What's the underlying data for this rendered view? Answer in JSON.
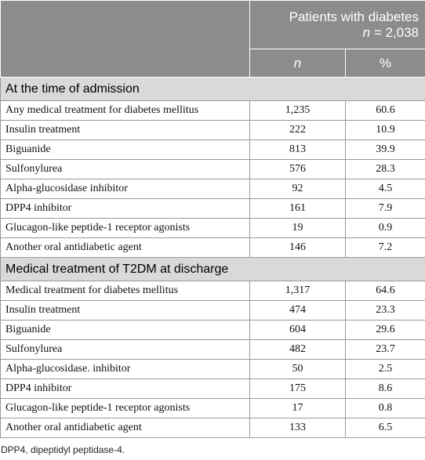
{
  "table": {
    "header": {
      "group": "Patients with diabetes",
      "group_sub": {
        "var": "n",
        "rest": "= 2,038"
      },
      "columns": [
        "n",
        "%"
      ]
    },
    "sections": [
      {
        "title": "At the time of admission",
        "rows": [
          [
            "Any medical treatment for diabetes mellitus",
            "1,235",
            "60.6"
          ],
          [
            "Insulin treatment",
            "222",
            "10.9"
          ],
          [
            "Biguanide",
            "813",
            "39.9"
          ],
          [
            "Sulfonylurea",
            "576",
            "28.3"
          ],
          [
            "Alpha-glucosidase inhibitor",
            "92",
            "4.5"
          ],
          [
            "DPP4 inhibitor",
            "161",
            "7.9"
          ],
          [
            "Glucagon-like peptide-1 receptor agonists",
            "19",
            "0.9"
          ],
          [
            "Another oral antidiabetic agent",
            "146",
            "7.2"
          ]
        ]
      },
      {
        "title": "Medical treatment of T2DM at discharge",
        "rows": [
          [
            "Medical treatment for diabetes mellitus",
            "1,317",
            "64.6"
          ],
          [
            "Insulin treatment",
            "474",
            "23.3"
          ],
          [
            "Biguanide",
            "604",
            "29.6"
          ],
          [
            "Sulfonylurea",
            "482",
            "23.7"
          ],
          [
            "Alpha-glucosidase. inhibitor",
            "50",
            "2.5"
          ],
          [
            "DPP4 inhibitor",
            "175",
            "8.6"
          ],
          [
            "Glucagon-like peptide-1 receptor agonists",
            "17",
            "0.8"
          ],
          [
            "Another oral antidiabetic agent",
            "133",
            "6.5"
          ]
        ]
      }
    ]
  },
  "footnote": "DPP4, dipeptidyl peptidase-4."
}
